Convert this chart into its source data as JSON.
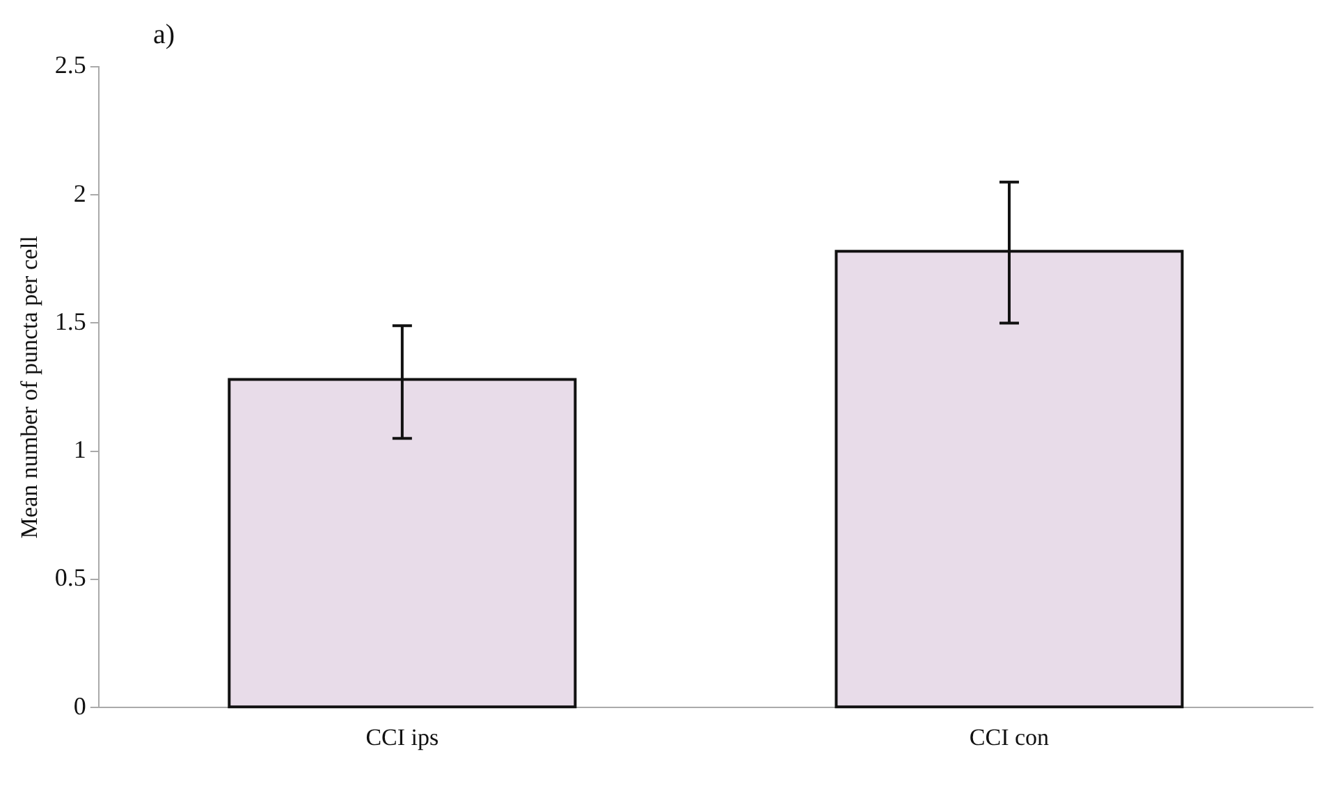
{
  "chart_data": {
    "type": "bar",
    "title": "a)",
    "ylabel": "Mean number of puncta per cell",
    "categories": [
      "CCI ips",
      "CCI con"
    ],
    "values": [
      1.28,
      1.78
    ],
    "errors": [
      [
        1.05,
        1.49
      ],
      [
        1.5,
        2.05
      ]
    ],
    "color": "#e8dce9",
    "ylim": [
      0,
      2.5
    ],
    "yticks": [
      0,
      0.5,
      1,
      1.5,
      2,
      2.5
    ],
    "grid": false,
    "legend": false
  }
}
